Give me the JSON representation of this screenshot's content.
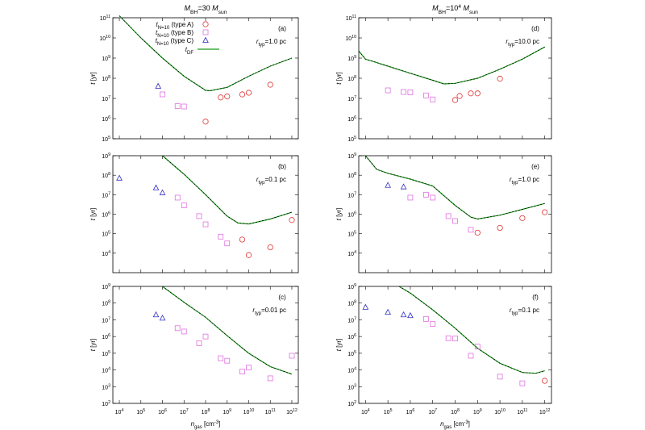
{
  "figure": {
    "column_titles": [
      {
        "pre": "M",
        "sub": "BH",
        "mid": "=30 ",
        "m2": "M",
        "sub2": "sun"
      },
      {
        "pre": "M",
        "sub": "BH",
        "mid": "=10",
        "sup": "4",
        "mid2": " ",
        "m2": "M",
        "sub2": "sun"
      }
    ],
    "xlabel": {
      "pre": "n",
      "sub": "gas",
      "mid": " [cm",
      "sup": "-3",
      "post": "]"
    },
    "ylabel": "t [yr]",
    "legend": [
      {
        "label_pre": "t",
        "label_sub": "N=10",
        "label_post": " (type A)",
        "marker": "circle",
        "color": "#e03030"
      },
      {
        "label_pre": "t",
        "label_sub": "N=10",
        "label_post": " (type B)",
        "marker": "square",
        "color": "#e070e0"
      },
      {
        "label_pre": "t",
        "label_sub": "N=10",
        "label_post": " (type C)",
        "marker": "triangle",
        "color": "#3030c0"
      },
      {
        "label_pre": "t",
        "label_sub": "DF",
        "label_post": "",
        "marker": "line",
        "color": "#1a9a1a"
      }
    ],
    "colors": {
      "A": "#e03030",
      "B": "#e070e0",
      "C": "#3030c0",
      "DF": "#1a9a1a"
    }
  },
  "chart_data": [
    {
      "type": "scatter",
      "panel": "(a)",
      "column": 0,
      "annotation": {
        "r": "r",
        "sub": "typ",
        "val": "=1.0 pc"
      },
      "xscale": "log",
      "yscale": "log",
      "xlim_exp": [
        3.7,
        12.3
      ],
      "ylim_exp": [
        5,
        11
      ],
      "x_ticks_exp": [
        4,
        5,
        6,
        7,
        8,
        9,
        10,
        11,
        12
      ],
      "y_ticks_exp": [
        5,
        6,
        7,
        8,
        9,
        10,
        11
      ],
      "A": [
        [
          8.0,
          5.85
        ],
        [
          8.7,
          7.05
        ],
        [
          9.0,
          7.1
        ],
        [
          9.7,
          7.2
        ],
        [
          10.0,
          7.28
        ],
        [
          11.0,
          7.68
        ]
      ],
      "B": [
        [
          6.0,
          7.2
        ],
        [
          6.7,
          6.62
        ],
        [
          7.0,
          6.6
        ]
      ],
      "C": [
        [
          5.8,
          7.6
        ]
      ],
      "DF": [
        [
          4.0,
          11.1
        ],
        [
          5.0,
          10.0
        ],
        [
          6.0,
          9.0
        ],
        [
          7.0,
          8.1
        ],
        [
          8.0,
          7.4
        ],
        [
          8.2,
          7.38
        ],
        [
          9.0,
          7.55
        ],
        [
          10.0,
          8.1
        ],
        [
          11.0,
          8.6
        ],
        [
          12.0,
          9.0
        ]
      ]
    },
    {
      "type": "scatter",
      "panel": "(d)",
      "column": 1,
      "annotation": {
        "r": "r",
        "sub": "typ",
        "val": "=10.0 pc"
      },
      "xscale": "log",
      "yscale": "log",
      "xlim_exp": [
        3.7,
        12.3
      ],
      "ylim_exp": [
        5,
        11
      ],
      "x_ticks_exp": [
        4,
        5,
        6,
        7,
        8,
        9,
        10,
        11,
        12
      ],
      "y_ticks_exp": [
        5,
        6,
        7,
        8,
        9,
        10,
        11
      ],
      "A": [
        [
          8.0,
          6.92
        ],
        [
          8.2,
          7.12
        ],
        [
          8.7,
          7.25
        ],
        [
          9.0,
          7.25
        ],
        [
          10.0,
          7.98
        ]
      ],
      "B": [
        [
          5.0,
          7.4
        ],
        [
          5.7,
          7.32
        ],
        [
          6.0,
          7.3
        ],
        [
          6.7,
          7.15
        ],
        [
          7.0,
          6.95
        ]
      ],
      "C": [],
      "DF": [
        [
          3.7,
          9.35
        ],
        [
          4.0,
          8.95
        ],
        [
          4.3,
          8.85
        ],
        [
          5.0,
          8.6
        ],
        [
          6.0,
          8.25
        ],
        [
          7.0,
          7.9
        ],
        [
          7.5,
          7.72
        ],
        [
          8.0,
          7.75
        ],
        [
          9.0,
          8.0
        ],
        [
          10.0,
          8.45
        ],
        [
          11.0,
          8.95
        ],
        [
          12.0,
          9.55
        ]
      ]
    },
    {
      "type": "scatter",
      "panel": "(b)",
      "column": 0,
      "annotation": {
        "r": "r",
        "sub": "typ",
        "val": "=0.1 pc"
      },
      "xscale": "log",
      "yscale": "log",
      "xlim_exp": [
        3.7,
        12.3
      ],
      "ylim_exp": [
        3,
        9
      ],
      "x_ticks_exp": [
        4,
        5,
        6,
        7,
        8,
        9,
        10,
        11,
        12
      ],
      "y_ticks_exp": [
        4,
        5,
        6,
        7,
        8,
        9
      ],
      "A": [
        [
          9.7,
          4.7
        ],
        [
          10.0,
          3.9
        ],
        [
          11.0,
          4.3
        ],
        [
          12.0,
          5.7
        ]
      ],
      "B": [
        [
          6.7,
          6.85
        ],
        [
          7.0,
          6.45
        ],
        [
          7.7,
          5.9
        ],
        [
          8.0,
          5.48
        ],
        [
          8.7,
          4.85
        ],
        [
          9.0,
          4.5
        ]
      ],
      "C": [
        [
          4.0,
          7.85
        ],
        [
          5.7,
          7.35
        ],
        [
          6.0,
          7.1
        ]
      ],
      "DF": [
        [
          6.0,
          9.0
        ],
        [
          7.0,
          8.05
        ],
        [
          8.0,
          7.0
        ],
        [
          9.0,
          5.9
        ],
        [
          9.5,
          5.55
        ],
        [
          10.0,
          5.5
        ],
        [
          11.0,
          5.75
        ],
        [
          12.0,
          6.1
        ]
      ]
    },
    {
      "type": "scatter",
      "panel": "(e)",
      "column": 1,
      "annotation": {
        "r": "r",
        "sub": "typ",
        "val": "=1.0 pc"
      },
      "xscale": "log",
      "yscale": "log",
      "xlim_exp": [
        3.7,
        12.3
      ],
      "ylim_exp": [
        3,
        9
      ],
      "x_ticks_exp": [
        4,
        5,
        6,
        7,
        8,
        9,
        10,
        11,
        12
      ],
      "y_ticks_exp": [
        4,
        5,
        6,
        7,
        8,
        9
      ],
      "A": [
        [
          9.0,
          5.05
        ],
        [
          10.0,
          5.3
        ],
        [
          11.0,
          5.8
        ],
        [
          12.0,
          6.1
        ]
      ],
      "B": [
        [
          6.0,
          6.85
        ],
        [
          6.7,
          7.0
        ],
        [
          7.0,
          6.85
        ],
        [
          7.7,
          5.9
        ],
        [
          8.0,
          5.65
        ],
        [
          8.7,
          5.2
        ]
      ],
      "C": [
        [
          5.0,
          7.48
        ],
        [
          5.7,
          7.4
        ]
      ],
      "DF": [
        [
          4.0,
          9.0
        ],
        [
          4.5,
          8.3
        ],
        [
          5.0,
          8.1
        ],
        [
          6.0,
          7.8
        ],
        [
          7.0,
          7.45
        ],
        [
          8.0,
          6.45
        ],
        [
          8.7,
          5.85
        ],
        [
          9.0,
          5.75
        ],
        [
          10.0,
          5.95
        ],
        [
          11.0,
          6.25
        ],
        [
          12.0,
          6.55
        ]
      ]
    },
    {
      "type": "scatter",
      "panel": "(c)",
      "column": 0,
      "annotation": {
        "r": "r",
        "sub": "typ",
        "val": "=0.01 pc"
      },
      "xscale": "log",
      "yscale": "log",
      "xlim_exp": [
        3.7,
        12.3
      ],
      "ylim_exp": [
        2,
        9
      ],
      "x_ticks_exp": [
        4,
        5,
        6,
        7,
        8,
        9,
        10,
        11,
        12
      ],
      "y_ticks_exp": [
        2,
        3,
        4,
        5,
        6,
        7,
        8,
        9
      ],
      "A": [],
      "B": [
        [
          6.7,
          6.5
        ],
        [
          7.0,
          6.3
        ],
        [
          7.7,
          5.6
        ],
        [
          8.0,
          6.0
        ],
        [
          8.7,
          4.7
        ],
        [
          9.0,
          4.55
        ],
        [
          9.7,
          3.9
        ],
        [
          10.0,
          4.15
        ],
        [
          11.0,
          3.5
        ],
        [
          12.0,
          4.85
        ]
      ],
      "C": [
        [
          5.7,
          7.3
        ],
        [
          6.0,
          7.1
        ]
      ],
      "DF": [
        [
          6.0,
          9.0
        ],
        [
          7.0,
          8.05
        ],
        [
          8.0,
          7.15
        ],
        [
          9.0,
          6.05
        ],
        [
          10.0,
          5.0
        ],
        [
          11.0,
          4.2
        ],
        [
          12.0,
          3.75
        ]
      ]
    },
    {
      "type": "scatter",
      "panel": "(f)",
      "column": 1,
      "annotation": {
        "r": "r",
        "sub": "typ",
        "val": "=0.1 pc"
      },
      "xscale": "log",
      "yscale": "log",
      "xlim_exp": [
        3.7,
        12.3
      ],
      "ylim_exp": [
        2,
        9
      ],
      "x_ticks_exp": [
        4,
        5,
        6,
        7,
        8,
        9,
        10,
        11,
        12
      ],
      "y_ticks_exp": [
        2,
        3,
        4,
        5,
        6,
        7,
        8,
        9
      ],
      "A": [
        [
          12.0,
          3.35
        ]
      ],
      "B": [
        [
          6.7,
          7.05
        ],
        [
          7.0,
          6.75
        ],
        [
          7.7,
          5.9
        ],
        [
          8.0,
          5.88
        ],
        [
          8.7,
          4.85
        ],
        [
          9.0,
          5.4
        ],
        [
          10.0,
          3.6
        ],
        [
          11.0,
          3.2
        ]
      ],
      "C": [
        [
          4.0,
          7.75
        ],
        [
          5.0,
          7.45
        ],
        [
          5.7,
          7.3
        ],
        [
          6.0,
          7.25
        ]
      ],
      "DF": [
        [
          5.5,
          9.0
        ],
        [
          6.0,
          8.6
        ],
        [
          7.0,
          7.6
        ],
        [
          8.0,
          6.5
        ],
        [
          9.0,
          5.3
        ],
        [
          10.0,
          4.4
        ],
        [
          11.0,
          3.85
        ],
        [
          11.6,
          3.8
        ],
        [
          12.0,
          3.95
        ]
      ]
    }
  ]
}
